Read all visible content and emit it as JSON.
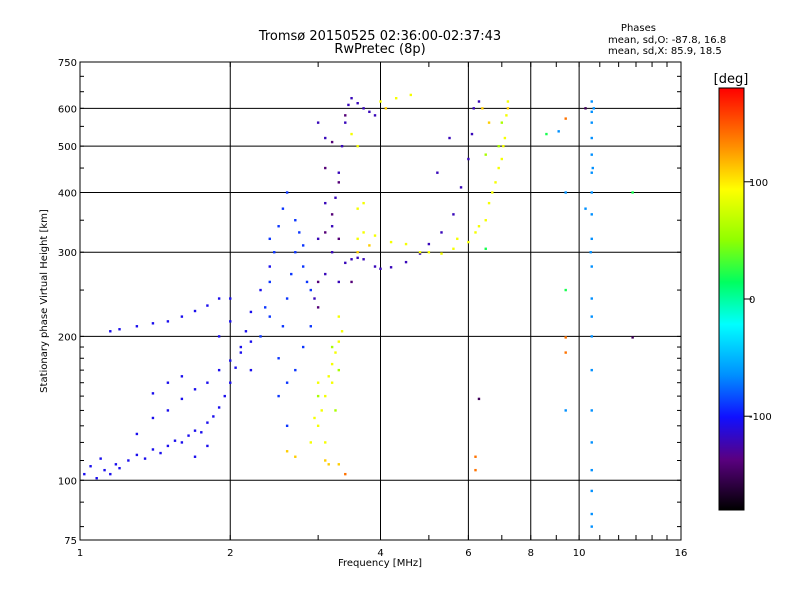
{
  "header": {
    "title_line1": "Tromsø 20150525 02:36:00-02:37:43",
    "title_line2": "RwPretec (8p)",
    "stats_title": "Phases",
    "stats_o": "mean, sd,O: -87.8, 16.8",
    "stats_x": "mean, sd,X:  85.9, 18.5"
  },
  "chart_data": {
    "type": "scatter",
    "xlabel": "Frequency [MHz]",
    "ylabel": "Stationary phase Virtual Height [km]",
    "xscale": "log",
    "yscale": "log",
    "xlim": [
      1,
      16
    ],
    "ylim": [
      75,
      750
    ],
    "x_ticks": [
      1,
      2,
      4,
      6,
      8,
      10,
      16
    ],
    "x_tick_labels": [
      "1",
      "2",
      "4",
      "6",
      "8",
      "10",
      "16"
    ],
    "x_gridlines": [
      2,
      4,
      6,
      8,
      10
    ],
    "y_ticks": [
      75,
      100,
      200,
      300,
      400,
      500,
      600,
      750
    ],
    "y_tick_labels": [
      "75",
      "100",
      "200",
      "300",
      "400",
      "500",
      "600",
      "750"
    ],
    "y_gridlines": [
      100,
      200,
      300,
      400,
      500,
      600
    ],
    "grid": true,
    "colorbar": {
      "label": "[deg]",
      "range": [
        -180,
        180
      ],
      "tick_values": [
        100,
        0,
        -100
      ],
      "tick_labels": [
        "100",
        "0",
        "-100"
      ]
    },
    "series": [
      {
        "phase_deg": -105,
        "points": [
          [
            1.02,
            103
          ],
          [
            1.05,
            107
          ],
          [
            1.08,
            101
          ],
          [
            1.1,
            111
          ],
          [
            1.12,
            105
          ],
          [
            1.15,
            103
          ],
          [
            1.18,
            108
          ],
          [
            1.2,
            106
          ],
          [
            1.25,
            110
          ],
          [
            1.3,
            113
          ],
          [
            1.35,
            111
          ],
          [
            1.4,
            116
          ],
          [
            1.45,
            114
          ],
          [
            1.5,
            118
          ],
          [
            1.55,
            121
          ],
          [
            1.6,
            120
          ],
          [
            1.65,
            124
          ],
          [
            1.7,
            127
          ],
          [
            1.75,
            126
          ],
          [
            1.8,
            132
          ],
          [
            1.85,
            136
          ],
          [
            1.9,
            142
          ],
          [
            1.95,
            150
          ],
          [
            2.0,
            160
          ],
          [
            2.05,
            172
          ],
          [
            2.1,
            190
          ],
          [
            2.15,
            205
          ],
          [
            2.2,
            225
          ],
          [
            2.3,
            250
          ],
          [
            2.4,
            280
          ],
          [
            1.15,
            205
          ],
          [
            1.2,
            207
          ],
          [
            1.3,
            210
          ],
          [
            1.4,
            213
          ],
          [
            1.5,
            215
          ],
          [
            1.6,
            220
          ],
          [
            1.7,
            226
          ],
          [
            1.8,
            232
          ],
          [
            1.9,
            240
          ],
          [
            2.0,
            240
          ],
          [
            1.3,
            125
          ],
          [
            1.4,
            135
          ],
          [
            1.5,
            140
          ],
          [
            1.6,
            148
          ],
          [
            1.7,
            155
          ],
          [
            1.8,
            160
          ],
          [
            1.9,
            170
          ],
          [
            2.0,
            178
          ],
          [
            2.1,
            185
          ],
          [
            2.2,
            195
          ],
          [
            1.4,
            152
          ],
          [
            1.5,
            160
          ],
          [
            1.6,
            165
          ],
          [
            1.9,
            200
          ],
          [
            2.0,
            215
          ],
          [
            2.2,
            170
          ],
          [
            1.7,
            112
          ],
          [
            1.8,
            118
          ]
        ]
      },
      {
        "phase_deg": -90,
        "points": [
          [
            2.3,
            200
          ],
          [
            2.35,
            230
          ],
          [
            2.4,
            260
          ],
          [
            2.45,
            300
          ],
          [
            2.5,
            340
          ],
          [
            2.55,
            370
          ],
          [
            2.6,
            400
          ],
          [
            2.5,
            180
          ],
          [
            2.55,
            210
          ],
          [
            2.6,
            240
          ],
          [
            2.65,
            270
          ],
          [
            2.7,
            300
          ],
          [
            2.75,
            330
          ],
          [
            2.8,
            310
          ],
          [
            2.6,
            160
          ],
          [
            2.7,
            170
          ],
          [
            2.8,
            190
          ],
          [
            2.9,
            210
          ],
          [
            2.9,
            250
          ],
          [
            2.8,
            280
          ],
          [
            2.4,
            320
          ],
          [
            2.7,
            350
          ],
          [
            2.85,
            260
          ],
          [
            2.5,
            150
          ],
          [
            2.6,
            130
          ],
          [
            2.4,
            220
          ]
        ]
      },
      {
        "phase_deg": -120,
        "points": [
          [
            3.2,
            340
          ],
          [
            3.25,
            390
          ],
          [
            3.3,
            440
          ],
          [
            3.35,
            500
          ],
          [
            3.4,
            560
          ],
          [
            3.45,
            610
          ],
          [
            3.5,
            630
          ],
          [
            3.6,
            615
          ],
          [
            3.7,
            600
          ],
          [
            3.8,
            590
          ],
          [
            3.9,
            580
          ],
          [
            3.4,
            285
          ],
          [
            3.5,
            290
          ],
          [
            3.6,
            292
          ],
          [
            3.7,
            290
          ],
          [
            3.9,
            280
          ],
          [
            4.0,
            277
          ],
          [
            4.2,
            279
          ],
          [
            4.5,
            286
          ],
          [
            4.8,
            298
          ],
          [
            5.0,
            312
          ],
          [
            5.3,
            330
          ],
          [
            5.6,
            360
          ],
          [
            5.8,
            410
          ],
          [
            6.0,
            470
          ],
          [
            6.1,
            530
          ],
          [
            6.15,
            600
          ],
          [
            3.1,
            520
          ],
          [
            3.0,
            560
          ],
          [
            3.1,
            380
          ],
          [
            3.0,
            320
          ],
          [
            3.2,
            300
          ],
          [
            3.3,
            260
          ],
          [
            2.95,
            240
          ],
          [
            3.1,
            270
          ],
          [
            6.3,
            620
          ],
          [
            5.2,
            440
          ],
          [
            5.5,
            520
          ]
        ]
      },
      {
        "phase_deg": -140,
        "points": [
          [
            3.0,
            260
          ],
          [
            3.1,
            330
          ],
          [
            3.2,
            360
          ],
          [
            3.3,
            420
          ],
          [
            3.1,
            450
          ],
          [
            3.2,
            510
          ],
          [
            3.3,
            320
          ],
          [
            3.5,
            260
          ],
          [
            3.0,
            230
          ],
          [
            3.4,
            580
          ]
        ]
      },
      {
        "phase_deg": 90,
        "points": [
          [
            3.0,
            130
          ],
          [
            3.05,
            140
          ],
          [
            3.1,
            150
          ],
          [
            3.15,
            165
          ],
          [
            3.2,
            175
          ],
          [
            3.25,
            185
          ],
          [
            3.3,
            195
          ],
          [
            3.35,
            205
          ],
          [
            3.1,
            120
          ],
          [
            3.2,
            160
          ],
          [
            3.3,
            220
          ],
          [
            2.9,
            120
          ],
          [
            2.95,
            135
          ],
          [
            3.0,
            160
          ],
          [
            3.6,
            320
          ],
          [
            3.7,
            330
          ],
          [
            3.9,
            325
          ],
          [
            4.2,
            315
          ],
          [
            4.5,
            312
          ],
          [
            4.8,
            300
          ],
          [
            5.0,
            300
          ],
          [
            5.3,
            298
          ],
          [
            5.6,
            305
          ],
          [
            6.0,
            315
          ],
          [
            6.3,
            340
          ],
          [
            6.6,
            380
          ],
          [
            6.8,
            420
          ],
          [
            7.0,
            470
          ],
          [
            7.1,
            520
          ],
          [
            7.15,
            580
          ],
          [
            7.2,
            620
          ],
          [
            6.5,
            350
          ],
          [
            6.7,
            400
          ],
          [
            6.9,
            450
          ],
          [
            7.05,
            500
          ],
          [
            3.6,
            500
          ],
          [
            3.5,
            530
          ],
          [
            3.7,
            380
          ],
          [
            3.6,
            370
          ],
          [
            4.0,
            620
          ],
          [
            4.3,
            630
          ],
          [
            4.6,
            640
          ],
          [
            5.7,
            320
          ],
          [
            6.2,
            330
          ]
        ]
      },
      {
        "phase_deg": 110,
        "points": [
          [
            2.6,
            115
          ],
          [
            2.7,
            112
          ],
          [
            3.1,
            110
          ],
          [
            3.3,
            108
          ],
          [
            3.6,
            300
          ],
          [
            3.8,
            310
          ],
          [
            6.4,
            600
          ],
          [
            6.6,
            560
          ],
          [
            7.2,
            600
          ],
          [
            4.1,
            600
          ],
          [
            3.15,
            108
          ]
        ]
      },
      {
        "phase_deg": 60,
        "points": [
          [
            3.0,
            150
          ],
          [
            3.2,
            190
          ],
          [
            3.3,
            170
          ],
          [
            6.9,
            500
          ],
          [
            7.0,
            560
          ],
          [
            6.5,
            480
          ],
          [
            3.25,
            140
          ]
        ]
      },
      {
        "phase_deg": -65,
        "points": [
          [
            10.6,
            620
          ],
          [
            10.6,
            590
          ],
          [
            10.6,
            560
          ],
          [
            10.6,
            520
          ],
          [
            10.6,
            480
          ],
          [
            10.6,
            440
          ],
          [
            10.6,
            400
          ],
          [
            10.6,
            360
          ],
          [
            10.6,
            320
          ],
          [
            10.6,
            280
          ],
          [
            10.6,
            240
          ],
          [
            10.6,
            200
          ],
          [
            10.6,
            170
          ],
          [
            10.6,
            140
          ],
          [
            10.6,
            120
          ],
          [
            10.6,
            105
          ],
          [
            10.6,
            95
          ],
          [
            10.6,
            85
          ],
          [
            10.6,
            80
          ],
          [
            10.7,
            600
          ],
          [
            10.65,
            450
          ],
          [
            10.55,
            300
          ],
          [
            10.6,
            220
          ],
          [
            9.4,
            140
          ],
          [
            9.4,
            400
          ],
          [
            10.3,
            370
          ],
          [
            9.1,
            537
          ]
        ]
      },
      {
        "phase_deg": 140,
        "points": [
          [
            9.4,
            185
          ],
          [
            9.4,
            199
          ],
          [
            9.4,
            571
          ],
          [
            6.2,
            112
          ],
          [
            6.2,
            105
          ],
          [
            3.4,
            103
          ]
        ]
      },
      {
        "phase_deg": -150,
        "points": [
          [
            12.8,
            199
          ],
          [
            10.3,
            600
          ],
          [
            6.3,
            148
          ]
        ]
      },
      {
        "phase_deg": 20,
        "points": [
          [
            9.4,
            250
          ],
          [
            8.6,
            530
          ],
          [
            6.5,
            305
          ],
          [
            12.8,
            400
          ]
        ]
      }
    ]
  }
}
